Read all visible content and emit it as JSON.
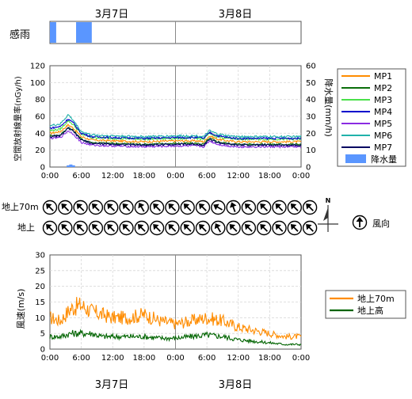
{
  "header": {
    "date1": "3月7日",
    "date2": "3月8日"
  },
  "footer": {
    "date1": "3月7日",
    "date2": "3月8日"
  },
  "rain_sense": {
    "label": "感雨",
    "bars": [
      [
        0.0,
        1.2
      ],
      [
        5.0,
        8.0
      ]
    ]
  },
  "chart_data": [
    {
      "type": "line",
      "title": "",
      "ylabel": "空間放射線量率(nGy/h)",
      "y2label": "降水量(mm/h)",
      "xlabel": "",
      "x_tick_labels": [
        "0:00",
        "6:00",
        "12:00",
        "18:00",
        "0:00",
        "6:00",
        "12:00",
        "18:00",
        "0:00"
      ],
      "xlim_hours": [
        0,
        48
      ],
      "ylim": [
        0,
        120
      ],
      "y_ticks": [
        0,
        20,
        40,
        60,
        80,
        100,
        120
      ],
      "y2lim": [
        0,
        60
      ],
      "y2_ticks": [
        0,
        10,
        20,
        30,
        40,
        50,
        60
      ],
      "grid": true,
      "legend_position": "right",
      "keyframes_hours": [
        0,
        2,
        3.5,
        4.5,
        6,
        8,
        12,
        18,
        24,
        28,
        29.5,
        30,
        30.5,
        32,
        34,
        36,
        42,
        48
      ],
      "series": [
        {
          "name": "MP1",
          "color": "#ff8c00",
          "values": [
            40,
            42,
            50,
            46,
            36,
            32,
            31,
            30,
            31,
            31,
            30,
            34,
            37,
            33,
            31,
            30,
            30,
            30
          ]
        },
        {
          "name": "MP2",
          "color": "#0a6e0a",
          "values": [
            37,
            38,
            47,
            43,
            33,
            29,
            28,
            27,
            28,
            28,
            27,
            31,
            34,
            30,
            28,
            27,
            27,
            27
          ]
        },
        {
          "name": "MP3",
          "color": "#4ae04a",
          "values": [
            43,
            45,
            55,
            50,
            39,
            35,
            34,
            33,
            34,
            34,
            33,
            37,
            40,
            36,
            34,
            33,
            33,
            33
          ]
        },
        {
          "name": "MP4",
          "color": "#0000cc",
          "values": [
            46,
            48,
            57,
            52,
            40,
            36,
            35,
            34,
            35,
            35,
            34,
            38,
            41,
            37,
            35,
            34,
            34,
            34
          ]
        },
        {
          "name": "MP5",
          "color": "#8a2be2",
          "values": [
            34,
            35,
            43,
            39,
            29,
            26,
            25,
            24,
            25,
            25,
            24,
            28,
            31,
            27,
            25,
            24,
            24,
            24
          ]
        },
        {
          "name": "MP6",
          "color": "#20b2aa",
          "values": [
            49,
            51,
            62,
            55,
            42,
            38,
            37,
            36,
            37,
            37,
            36,
            40,
            43,
            39,
            37,
            36,
            36,
            36
          ]
        },
        {
          "name": "MP7",
          "color": "#000060",
          "values": [
            36,
            37,
            46,
            42,
            32,
            28,
            27,
            26,
            27,
            27,
            26,
            30,
            33,
            29,
            27,
            26,
            26,
            26
          ]
        }
      ],
      "precip": {
        "name": "降水量",
        "color": "#5a96ff",
        "x_hours": [
          3.5,
          4.0,
          4.5
        ],
        "values": [
          1,
          1.5,
          1
        ]
      }
    },
    {
      "type": "line",
      "title": "",
      "ylabel": "風速(m/s)",
      "xlabel": "",
      "x_tick_labels": [
        "0:00",
        "6:00",
        "12:00",
        "18:00",
        "0:00",
        "6:00",
        "12:00",
        "18:00",
        "0:00"
      ],
      "xlim_hours": [
        0,
        48
      ],
      "ylim": [
        0,
        30
      ],
      "y_ticks": [
        0,
        5,
        10,
        15,
        20,
        25,
        30
      ],
      "grid": true,
      "legend_position": "right",
      "keyframes_hours": [
        0,
        2,
        4,
        6,
        8,
        10,
        12,
        15,
        18,
        21,
        24,
        27,
        30,
        33,
        36,
        39,
        42,
        45,
        48
      ],
      "series": [
        {
          "name": "地上70m",
          "color": "#ff8c00",
          "values": [
            10,
            9,
            13,
            14,
            12,
            11,
            10,
            10,
            11,
            9,
            8,
            9,
            10,
            9,
            7,
            6,
            5,
            4,
            4
          ]
        },
        {
          "name": "地上高",
          "color": "#006400",
          "values": [
            4,
            4,
            5,
            5,
            5,
            4,
            4,
            4,
            4,
            3.5,
            3.5,
            4,
            4.5,
            4,
            3,
            2.5,
            2,
            1.5,
            1.5
          ]
        }
      ]
    }
  ],
  "wind_direction": {
    "rows": [
      {
        "label": "地上70m",
        "angles_deg": [
          135,
          135,
          135,
          135,
          135,
          135,
          150,
          135,
          135,
          135,
          135,
          120,
          160,
          135,
          135,
          135,
          135,
          135
        ]
      },
      {
        "label": "地上",
        "angles_deg": [
          135,
          135,
          135,
          135,
          135,
          135,
          135,
          135,
          135,
          135,
          135,
          150,
          135,
          135,
          135,
          135,
          135,
          135
        ]
      }
    ],
    "north_label": "N",
    "legend_label": "風向"
  }
}
